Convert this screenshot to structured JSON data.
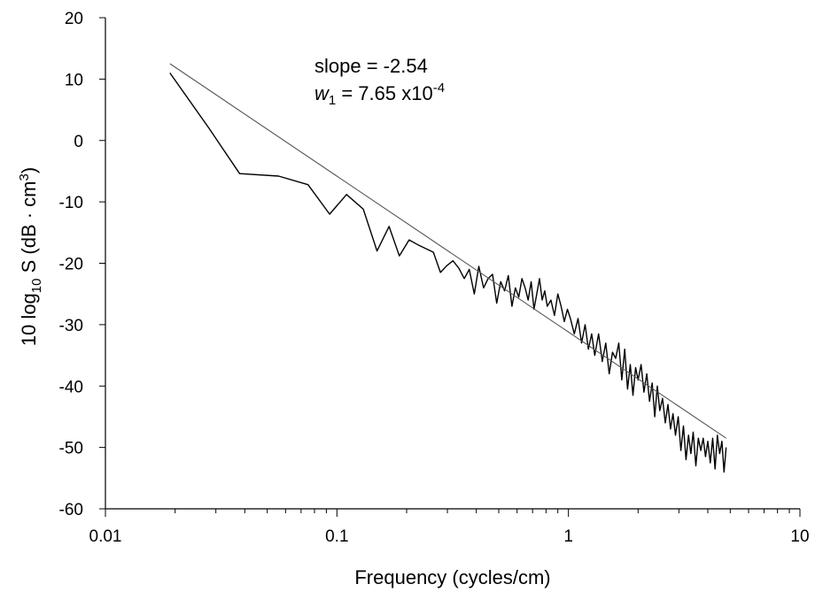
{
  "chart_data": {
    "type": "line",
    "xscale": "log",
    "xlim": [
      0.01,
      10
    ],
    "ylim": [
      -60,
      20
    ],
    "xticks": [
      0.01,
      0.1,
      1,
      10
    ],
    "xtick_labels": [
      "0.01",
      "0.1",
      "1",
      "10"
    ],
    "yticks": [
      -60,
      -50,
      -40,
      -30,
      -20,
      -10,
      0,
      10,
      20
    ],
    "ytick_labels": [
      "-60",
      "-50",
      "-40",
      "-30",
      "-20",
      "-10",
      "0",
      "10",
      "20"
    ],
    "xlabel": "Frequency (cycles/cm)",
    "ylabel": {
      "prefix": "10 log",
      "sub": "10",
      "mid": " S  (dB · cm",
      "sup": "3",
      "suffix": ")"
    },
    "grid": false,
    "annotations": {
      "slope_text": "slope = -2.54",
      "w_symbol": "w",
      "w_sub": "1",
      "w_value": " = 7.65 x10",
      "w_exp": "-4"
    },
    "series": [
      {
        "style": "spectrum",
        "color": "#000000",
        "x": [
          0.019,
          0.028,
          0.038,
          0.056,
          0.075,
          0.093,
          0.11,
          0.13,
          0.149,
          0.168,
          0.186,
          0.205,
          0.224,
          0.261,
          0.28,
          0.298,
          0.317,
          0.336,
          0.355,
          0.373,
          0.392,
          0.41,
          0.43,
          0.45,
          0.47,
          0.49,
          0.51,
          0.53,
          0.55,
          0.57,
          0.59,
          0.61,
          0.63,
          0.65,
          0.67,
          0.69,
          0.71,
          0.73,
          0.75,
          0.77,
          0.79,
          0.81,
          0.84,
          0.87,
          0.9,
          0.93,
          0.96,
          0.99,
          1.02,
          1.06,
          1.1,
          1.14,
          1.18,
          1.22,
          1.26,
          1.3,
          1.35,
          1.4,
          1.45,
          1.5,
          1.55,
          1.6,
          1.65,
          1.7,
          1.75,
          1.8,
          1.85,
          1.9,
          1.95,
          2.0,
          2.06,
          2.12,
          2.18,
          2.24,
          2.3,
          2.36,
          2.42,
          2.48,
          2.55,
          2.62,
          2.69,
          2.76,
          2.83,
          2.9,
          2.98,
          3.06,
          3.14,
          3.22,
          3.3,
          3.38,
          3.46,
          3.55,
          3.64,
          3.73,
          3.82,
          3.91,
          4.0,
          4.1,
          4.2,
          4.3,
          4.4,
          4.5,
          4.6,
          4.7,
          4.8
        ],
        "y": [
          11.0,
          2.0,
          -5.4,
          -5.8,
          -7.2,
          -12.0,
          -8.8,
          -11.2,
          -18.0,
          -14.0,
          -18.8,
          -16.2,
          -17.0,
          -18.2,
          -21.5,
          -20.4,
          -19.6,
          -20.8,
          -22.5,
          -21.0,
          -25.0,
          -20.5,
          -24.0,
          -22.5,
          -21.8,
          -26.5,
          -23.0,
          -24.5,
          -22.0,
          -27.0,
          -24.0,
          -25.5,
          -22.5,
          -24.0,
          -26.0,
          -23.0,
          -27.5,
          -25.0,
          -22.5,
          -26.0,
          -24.5,
          -27.0,
          -26.0,
          -28.5,
          -25.0,
          -27.0,
          -29.5,
          -27.5,
          -29.0,
          -31.5,
          -29.0,
          -33.0,
          -30.0,
          -34.0,
          -31.5,
          -35.0,
          -31.5,
          -36.0,
          -33.0,
          -38.0,
          -34.5,
          -35.5,
          -33.0,
          -39.0,
          -34.0,
          -40.5,
          -36.5,
          -41.5,
          -37.0,
          -39.0,
          -36.5,
          -41.0,
          -38.0,
          -42.5,
          -39.5,
          -45.0,
          -40.0,
          -44.0,
          -42.0,
          -46.0,
          -43.0,
          -47.0,
          -44.5,
          -48.0,
          -45.0,
          -50.5,
          -46.5,
          -52.0,
          -48.0,
          -51.0,
          -47.5,
          -53.0,
          -48.5,
          -50.5,
          -48.5,
          -51.5,
          -49.0,
          -52.5,
          -48.5,
          -53.5,
          -48.0,
          -51.0,
          -49.0,
          -54.0,
          -50.0
        ]
      },
      {
        "style": "fit",
        "color": "#555555",
        "x": [
          0.019,
          4.8
        ],
        "y": [
          12.5,
          -48.5
        ]
      }
    ]
  }
}
